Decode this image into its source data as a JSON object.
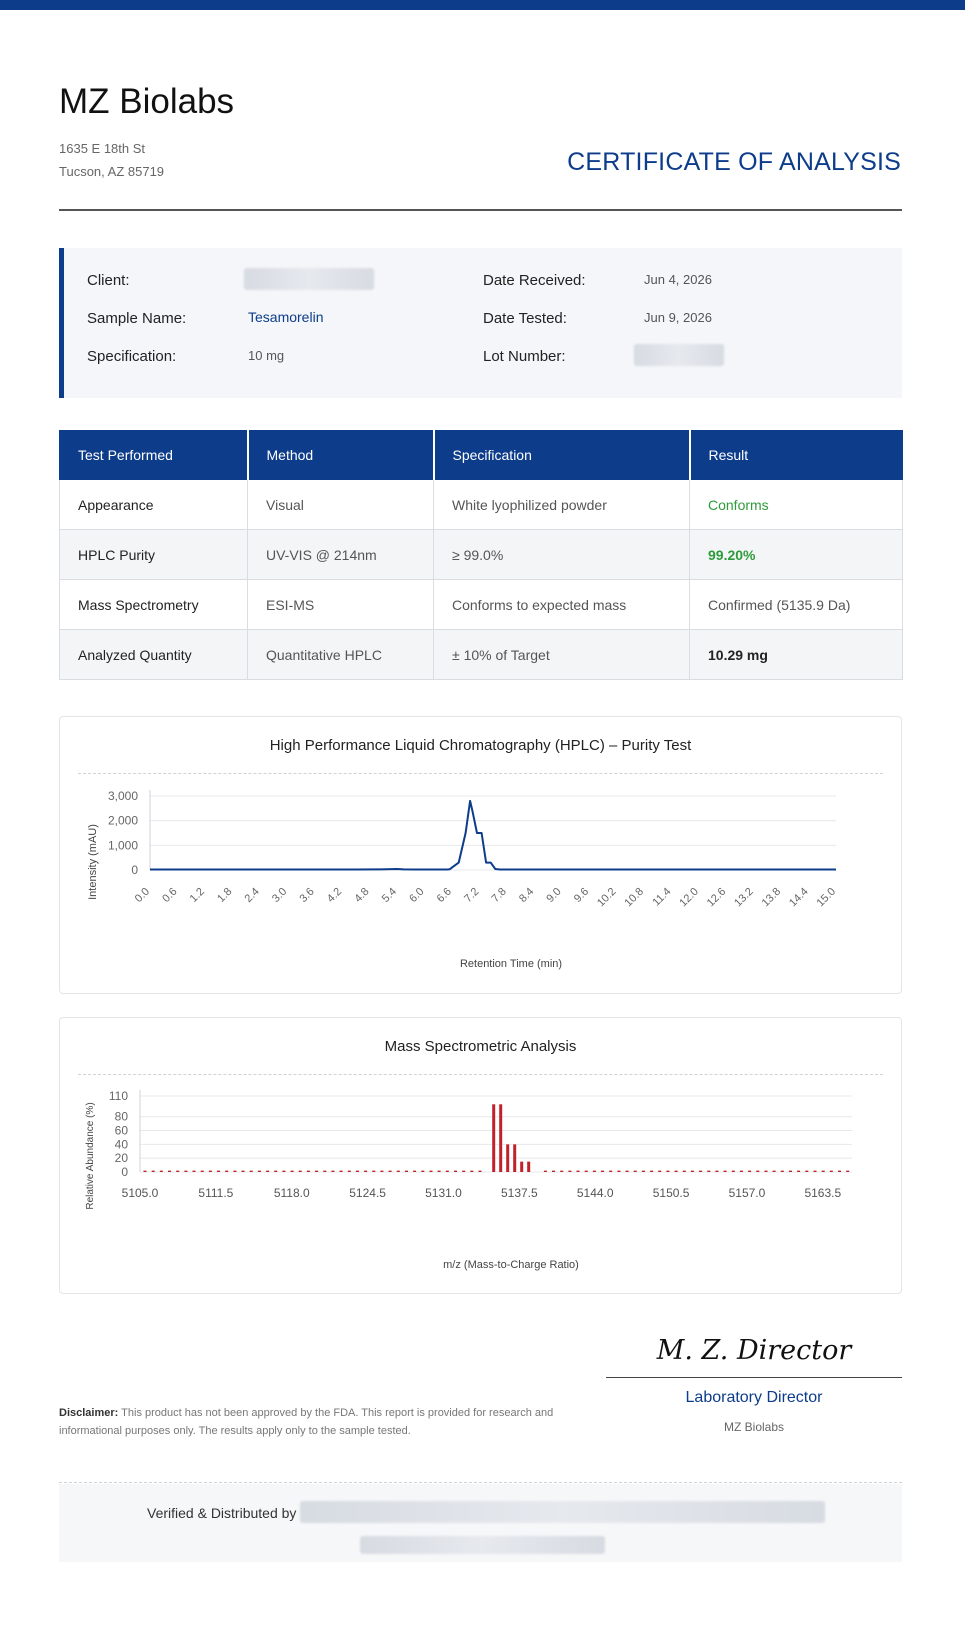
{
  "header": {
    "company": "MZ Biolabs",
    "address_line1": "1635 E 18th St",
    "address_line2": "Tucson, AZ 85719",
    "document_title": "CERTIFICATE OF ANALYSIS",
    "accent_color": "#0d3c8b"
  },
  "info": {
    "client_label": "Client:",
    "sample_label": "Sample Name:",
    "sample_value": "Tesamorelin",
    "spec_label": "Specification:",
    "spec_value": "10 mg",
    "received_label": "Date Received:",
    "received_value": "Jun 4, 2026",
    "tested_label": "Date Tested:",
    "tested_value": "Jun 9, 2026",
    "lot_label": "Lot Number:"
  },
  "tests": {
    "headers": [
      "Test Performed",
      "Method",
      "Specification",
      "Result"
    ],
    "rows": [
      [
        "Appearance",
        "Visual",
        "White lyophilized powder",
        "Conforms"
      ],
      [
        "HPLC Purity",
        "UV-VIS @ 214nm",
        "≥ 99.0%",
        "99.20%"
      ],
      [
        "Mass Spectrometry",
        "ESI-MS",
        "Conforms to expected mass",
        "Confirmed (5135.9 Da)"
      ],
      [
        "Analyzed Quantity",
        "Quantitative HPLC",
        "± 10% of Target",
        "10.29 mg"
      ]
    ],
    "pass_color": "#2e9b3a"
  },
  "chart_data": [
    {
      "type": "line",
      "title": "High Performance Liquid Chromatography (HPLC)  –  Purity Test",
      "xlabel": "Retention Time (min)",
      "ylabel": "Intensity (mAU)",
      "xlim": [
        0,
        15
      ],
      "ylim": [
        0,
        3000
      ],
      "yticks": [
        "0",
        "1,000",
        "2,000",
        "3,000"
      ],
      "xticks": [
        "0.0",
        "0.6",
        "1.2",
        "1.8",
        "2.4",
        "3.0",
        "3.6",
        "4.2",
        "4.8",
        "5.4",
        "6.0",
        "6.6",
        "7.2",
        "7.8",
        "8.4",
        "9.0",
        "9.6",
        "10.2",
        "10.8",
        "11.4",
        "12.0",
        "12.6",
        "13.2",
        "13.8",
        "14.4",
        "15.0"
      ],
      "grid": true,
      "color": "#0d3c8b",
      "series": [
        {
          "x": [
            0,
            2.0,
            4.5,
            5.0,
            5.4,
            5.55,
            5.8,
            6.5,
            6.55,
            6.75,
            6.9,
            7.0,
            7.05,
            7.15,
            7.25,
            7.35,
            7.45,
            7.55,
            7.65,
            8.0,
            10.0,
            12.0,
            15.0
          ],
          "y": [
            20,
            20,
            20,
            25,
            40,
            25,
            20,
            20,
            30,
            300,
            1500,
            2800,
            2400,
            1500,
            1500,
            300,
            300,
            40,
            20,
            20,
            20,
            20,
            20
          ]
        }
      ]
    },
    {
      "type": "bar",
      "title": "Mass Spectrometric Analysis",
      "xlabel": "m/z (Mass-to-Charge Ratio)",
      "ylabel": "Relative Abundance (%)",
      "xlim": [
        5105.0,
        5166.0
      ],
      "ylim": [
        0,
        110
      ],
      "yticks": [
        "0",
        "20",
        "40",
        "60",
        "80",
        "110"
      ],
      "xticks": [
        "5105.0",
        "5111.5",
        "5118.0",
        "5124.5",
        "5131.0",
        "5137.5",
        "5144.0",
        "5150.5",
        "5157.0",
        "5163.5"
      ],
      "grid": true,
      "color": "#c0222b",
      "peaks": [
        {
          "mz": 5135.3,
          "abundance": 98
        },
        {
          "mz": 5135.9,
          "abundance": 98
        },
        {
          "mz": 5136.5,
          "abundance": 40
        },
        {
          "mz": 5137.1,
          "abundance": 40
        },
        {
          "mz": 5137.7,
          "abundance": 15
        },
        {
          "mz": 5138.3,
          "abundance": 15
        }
      ],
      "baseline_abundance": 2
    }
  ],
  "signature": {
    "script_name": "M. Z. Director",
    "title": "Laboratory Director",
    "organization": "MZ Biolabs"
  },
  "disclaimer": {
    "label": "Disclaimer:",
    "text": "This product has not been approved by the FDA. This report is provided for research and informational purposes only. The results apply only to the sample tested."
  },
  "footer": {
    "verified_label": "Verified & Distributed by"
  }
}
